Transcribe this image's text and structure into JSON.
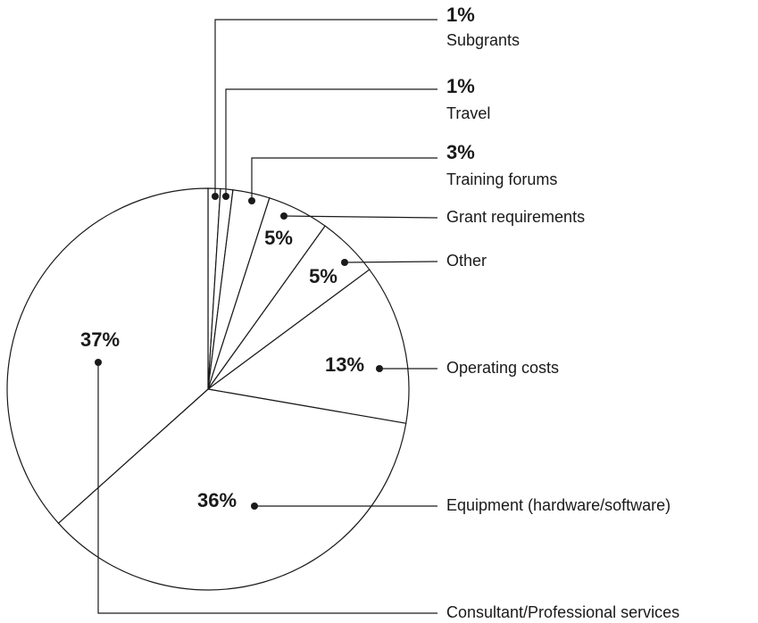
{
  "chart_data": {
    "type": "pie",
    "categories": [
      "Subgrants",
      "Travel",
      "Training forums",
      "Grant requirements",
      "Other",
      "Operating costs",
      "Equipment (hardware/software)",
      "Consultant/Professional services"
    ],
    "values": [
      1,
      1,
      3,
      5,
      5,
      13,
      36,
      37
    ],
    "value_labels": [
      "1%",
      "1%",
      "3%",
      "5%",
      "5%",
      "13%",
      "36%",
      "37%"
    ],
    "color": "#ffffff"
  }
}
